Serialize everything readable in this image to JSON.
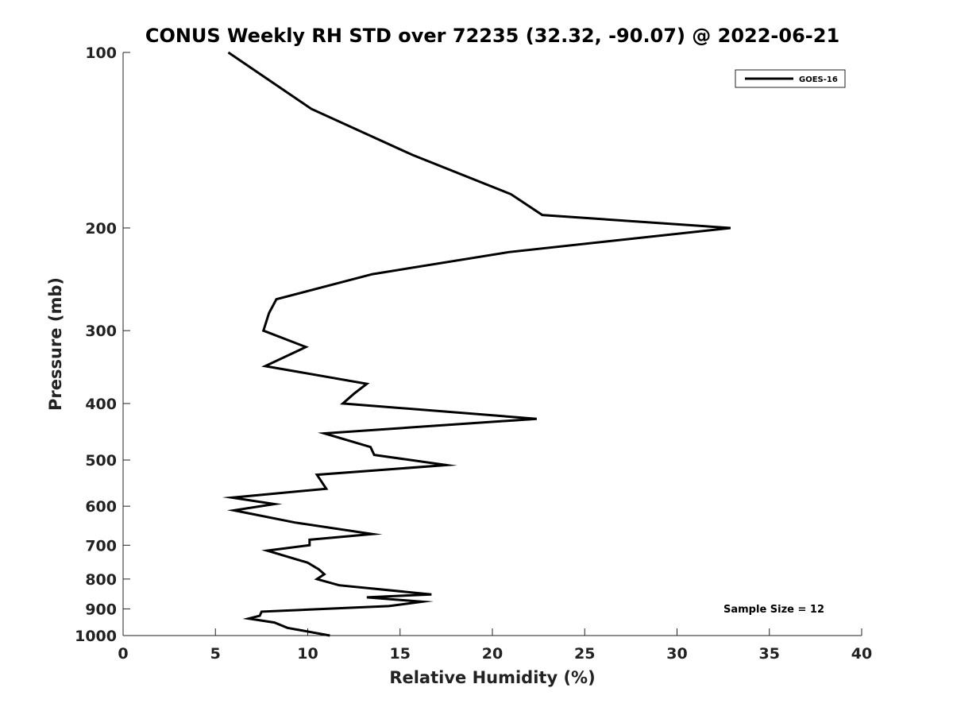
{
  "chart_data": {
    "type": "line",
    "title": "CONUS Weekly RH STD over 72235 (32.32, -90.07) @ 2022-06-21",
    "xlabel": "Relative Humidity (%)",
    "ylabel": "Pressure (mb)",
    "xlim": [
      0,
      40
    ],
    "ylim": [
      1000,
      100
    ],
    "y_scale": "log",
    "y_reversed": true,
    "x_ticks": [
      0,
      5,
      10,
      15,
      20,
      25,
      30,
      35,
      40
    ],
    "y_ticks": [
      100,
      200,
      300,
      400,
      500,
      600,
      700,
      800,
      900,
      1000
    ],
    "grid": false,
    "legend_position": "top-right",
    "series": [
      {
        "name": "GOES-16",
        "color": "#000000",
        "x": [
          5.7,
          10.2,
          15.7,
          21.0,
          22.7,
          32.9,
          20.9,
          13.5,
          8.3,
          7.9,
          7.6,
          9.9,
          7.7,
          13.2,
          12.5,
          11.9,
          22.4,
          10.9,
          13.4,
          13.6,
          17.5,
          10.5,
          11.0,
          5.9,
          8.2,
          6.0,
          9.3,
          13.5,
          10.1,
          10.1,
          7.8,
          10.0,
          10.6,
          10.9,
          10.5,
          11.7,
          16.7,
          13.2,
          16.2,
          14.4,
          7.5,
          7.4,
          6.8,
          8.2,
          8.9,
          11.2
        ],
        "y": [
          100,
          125,
          150,
          175,
          190,
          200,
          220,
          240,
          265,
          280,
          300,
          320,
          345,
          370,
          385,
          400,
          425,
          450,
          475,
          490,
          510,
          530,
          560,
          580,
          595,
          610,
          640,
          670,
          685,
          700,
          715,
          750,
          770,
          785,
          800,
          820,
          850,
          860,
          875,
          890,
          910,
          925,
          935,
          950,
          970,
          1000
        ]
      }
    ],
    "annotations": [
      "Sample Size = 12"
    ]
  }
}
